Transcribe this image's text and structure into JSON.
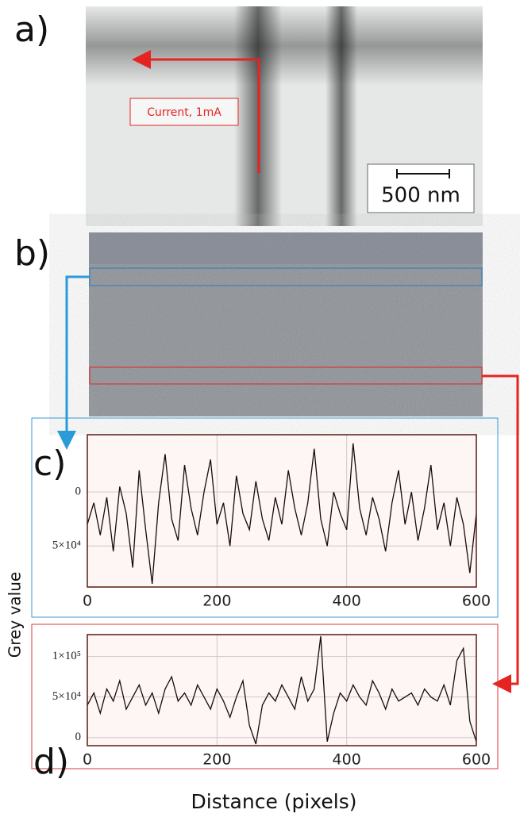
{
  "panels": {
    "a": "a)",
    "b": "b)",
    "c": "c)",
    "d": "d)"
  },
  "annotation": "Current, 1mA",
  "scale_bar": "500 nm",
  "axis_labels": {
    "y": "Grey value",
    "x": "Distance (pixels)"
  },
  "chart_data": [
    {
      "type": "line",
      "color": "#1a0a0a",
      "grid": true,
      "x": [
        0,
        10,
        20,
        30,
        40,
        50,
        60,
        70,
        80,
        90,
        100,
        110,
        120,
        130,
        140,
        150,
        160,
        170,
        180,
        190,
        200,
        210,
        220,
        230,
        240,
        250,
        260,
        270,
        280,
        290,
        300,
        310,
        320,
        330,
        340,
        350,
        360,
        370,
        380,
        390,
        400,
        410,
        420,
        430,
        440,
        450,
        460,
        470,
        480,
        490,
        500,
        510,
        520,
        530,
        540,
        550,
        560,
        570,
        580,
        590,
        600
      ],
      "values": [
        30000,
        10000,
        40000,
        5000,
        55000,
        -5000,
        20000,
        70000,
        -20000,
        35000,
        85000,
        10000,
        -35000,
        25000,
        45000,
        -25000,
        15000,
        40000,
        0,
        -30000,
        30000,
        10000,
        50000,
        -15000,
        20000,
        35000,
        -10000,
        25000,
        45000,
        5000,
        30000,
        -20000,
        15000,
        40000,
        10000,
        -40000,
        25000,
        50000,
        0,
        20000,
        35000,
        -45000,
        15000,
        40000,
        5000,
        25000,
        55000,
        10000,
        -20000,
        30000,
        0,
        45000,
        15000,
        -25000,
        35000,
        10000,
        50000,
        5000,
        30000,
        75000,
        20000
      ],
      "xlim": [
        0,
        600
      ],
      "ylim": [
        88000,
        -53000
      ],
      "xticks": [
        0,
        200,
        400,
        600
      ],
      "yticks": [
        0,
        {
          "value": 50000,
          "label": "5×10⁴"
        }
      ]
    },
    {
      "type": "line",
      "color": "#1a0a0a",
      "grid": true,
      "x": [
        0,
        10,
        20,
        30,
        40,
        50,
        60,
        70,
        80,
        90,
        100,
        110,
        120,
        130,
        140,
        150,
        160,
        170,
        180,
        190,
        200,
        210,
        220,
        230,
        240,
        250,
        260,
        270,
        280,
        290,
        300,
        310,
        320,
        330,
        340,
        350,
        360,
        370,
        380,
        390,
        400,
        410,
        420,
        430,
        440,
        450,
        460,
        470,
        480,
        490,
        500,
        510,
        520,
        530,
        540,
        550,
        560,
        570,
        580,
        590,
        600
      ],
      "values": [
        40000,
        55000,
        30000,
        60000,
        45000,
        70000,
        35000,
        50000,
        65000,
        40000,
        55000,
        30000,
        60000,
        75000,
        45000,
        55000,
        40000,
        65000,
        50000,
        35000,
        60000,
        45000,
        25000,
        50000,
        70000,
        15000,
        -8000,
        40000,
        55000,
        45000,
        65000,
        50000,
        35000,
        75000,
        45000,
        60000,
        125000,
        -5000,
        30000,
        55000,
        45000,
        65000,
        50000,
        40000,
        70000,
        55000,
        35000,
        60000,
        45000,
        50000,
        55000,
        40000,
        60000,
        50000,
        45000,
        65000,
        40000,
        95000,
        110000,
        20000,
        -5000
      ],
      "xlim": [
        0,
        600
      ],
      "ylim": [
        -10000,
        127000
      ],
      "xticks": [
        0,
        200,
        400,
        600
      ],
      "yticks": [
        0,
        {
          "value": 50000,
          "label": "5×10⁴"
        },
        {
          "value": 100000,
          "label": "1×10⁵"
        }
      ]
    }
  ]
}
